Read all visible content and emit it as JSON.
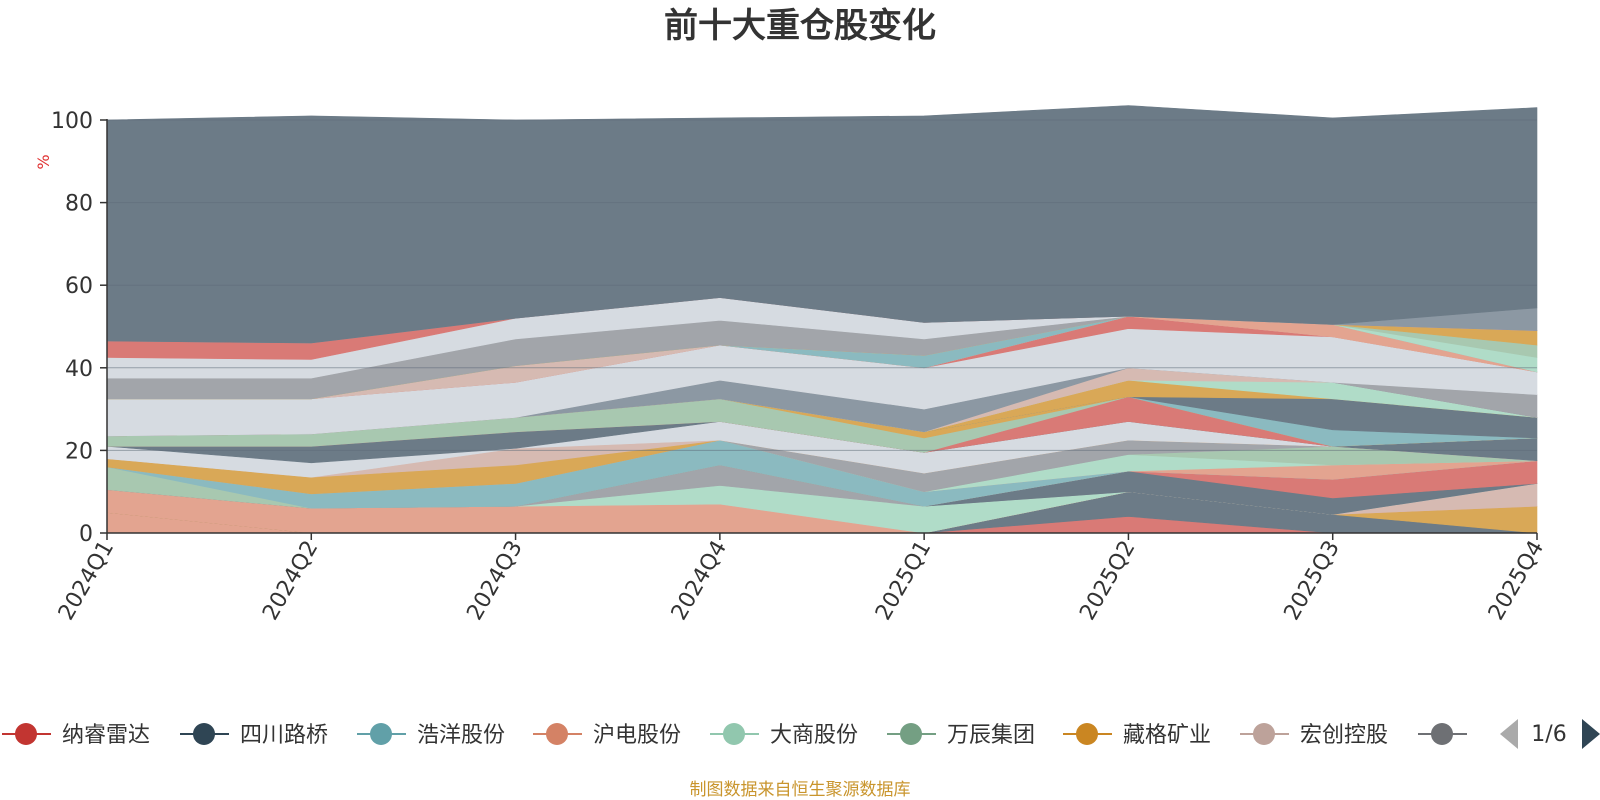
{
  "chart_data": {
    "type": "area",
    "stacked": true,
    "title": "前十大重仓股变化",
    "ylabel": "%",
    "ylim": [
      0,
      100
    ],
    "yticks": [
      0,
      20,
      40,
      60,
      80,
      100
    ],
    "grid": true,
    "legend_position": "bottom",
    "categories": [
      "2024Q1",
      "2024Q2",
      "2024Q3",
      "2024Q4",
      "2025Q1",
      "2025Q2",
      "2025Q3",
      "2025Q4"
    ],
    "series": [
      {
        "name": "",
        "color": "#e3a490",
        "values": [
          5.0,
          0.0,
          0.0,
          0.0,
          0.0,
          0.0,
          0.0,
          0.0
        ]
      },
      {
        "name": "纳睿雷达",
        "color": "#d97a76",
        "values": [
          0.0,
          0.0,
          0.0,
          0.0,
          0.0,
          4.0,
          0.0,
          0.0
        ]
      },
      {
        "name": "",
        "color": "#6c7b87",
        "values": [
          0.0,
          0.0,
          0.0,
          0.0,
          0.0,
          6.0,
          4.5,
          0.0
        ]
      },
      {
        "name": "藏格矿业",
        "color": "#d9a857",
        "values": [
          0.0,
          0.0,
          0.0,
          0.0,
          0.0,
          0.0,
          0.0,
          6.5
        ]
      },
      {
        "name": "沪电股份",
        "color": "#e3a490",
        "values": [
          5.5,
          6.0,
          6.5,
          7.0,
          0.0,
          0.0,
          0.0,
          0.0
        ]
      },
      {
        "name": "宏创控股",
        "color": "#d6bab2",
        "values": [
          0.0,
          0.0,
          0.0,
          0.0,
          0.0,
          0.0,
          0.0,
          5.5
        ]
      },
      {
        "name": "大商股份",
        "color": "#b0dcc8",
        "values": [
          0.0,
          0.0,
          0.0,
          4.5,
          6.5,
          0.0,
          0.0,
          0.0
        ]
      },
      {
        "name": "",
        "color": "#a2a5aa",
        "values": [
          0.0,
          0.0,
          0.0,
          5.0,
          0.0,
          0.0,
          0.0,
          0.0
        ]
      },
      {
        "name": "",
        "color": "#6c7b87",
        "values": [
          0.0,
          0.0,
          0.0,
          0.0,
          0.0,
          5.0,
          4.0,
          0.0
        ]
      },
      {
        "name": "",
        "color": "#d97a76",
        "values": [
          0.0,
          0.0,
          0.0,
          0.0,
          0.0,
          0.0,
          4.5,
          5.5
        ]
      },
      {
        "name": "",
        "color": "#a8c8b0",
        "values": [
          5.5,
          0.0,
          0.0,
          0.0,
          0.0,
          0.0,
          0.0,
          0.0
        ]
      },
      {
        "name": "",
        "color": "#8bbac0",
        "values": [
          0.0,
          3.5,
          5.5,
          6.0,
          3.5,
          0.0,
          0.0,
          0.0
        ]
      },
      {
        "name": "",
        "color": "#e3a490",
        "values": [
          0.0,
          0.0,
          0.0,
          0.0,
          0.0,
          0.0,
          3.5,
          0.0
        ]
      },
      {
        "name": "",
        "color": "#b0dcc8",
        "values": [
          0.0,
          0.0,
          0.0,
          0.0,
          0.0,
          4.0,
          0.0,
          0.0
        ]
      },
      {
        "name": "",
        "color": "#a8c8b0",
        "values": [
          0.0,
          0.0,
          0.0,
          0.0,
          0.0,
          0.0,
          4.5,
          0.0
        ]
      },
      {
        "name": "",
        "color": "#a2a5aa",
        "values": [
          0.0,
          0.0,
          0.0,
          0.0,
          4.5,
          3.5,
          0.0,
          0.0
        ]
      },
      {
        "name": "",
        "color": "#d9a857",
        "values": [
          2.0,
          4.0,
          4.5,
          0.0,
          0.0,
          0.0,
          0.0,
          0.0
        ]
      },
      {
        "name": "",
        "color": "#d6bab2",
        "values": [
          0.0,
          0.0,
          4.0,
          0.0,
          0.0,
          0.0,
          0.0,
          0.0
        ]
      },
      {
        "name": "",
        "color": "#d6dbe1",
        "values": [
          3.0,
          3.5,
          0.0,
          4.5,
          5.0,
          4.5,
          0.0,
          0.0
        ]
      },
      {
        "name": "",
        "color": "#6c7b87",
        "values": [
          0.0,
          4.0,
          4.0,
          0.0,
          0.0,
          0.0,
          0.0,
          5.5
        ]
      },
      {
        "name": "",
        "color": "#d97a76",
        "values": [
          0.0,
          0.0,
          0.0,
          0.0,
          0.0,
          6.0,
          0.0,
          0.0
        ]
      },
      {
        "name": "",
        "color": "#a8c8b0",
        "values": [
          2.5,
          3.0,
          3.5,
          5.5,
          3.5,
          0.0,
          0.0,
          0.0
        ]
      },
      {
        "name": "",
        "color": "#d9a857",
        "values": [
          0.0,
          0.0,
          0.0,
          0.0,
          1.5,
          0.0,
          0.0,
          0.0
        ]
      },
      {
        "name": "",
        "color": "#8bbac0",
        "values": [
          0.0,
          0.0,
          0.0,
          0.0,
          0.0,
          0.0,
          4.0,
          0.0
        ]
      },
      {
        "name": "",
        "color": "#6c7b87",
        "values": [
          0.0,
          0.0,
          0.0,
          0.0,
          0.0,
          0.0,
          7.5,
          5.0
        ]
      },
      {
        "name": "",
        "color": "#d9a857",
        "values": [
          0.0,
          0.0,
          0.0,
          0.0,
          0.0,
          4.0,
          0.0,
          0.0
        ]
      },
      {
        "name": "",
        "color": "#b0dcc8",
        "values": [
          0.0,
          0.0,
          0.0,
          0.0,
          0.0,
          0.0,
          4.0,
          0.0
        ]
      },
      {
        "name": "",
        "color": "#d6bab2",
        "values": [
          0.0,
          0.0,
          0.0,
          0.0,
          0.0,
          3.0,
          0.0,
          0.0
        ]
      },
      {
        "name": "",
        "color": "#8c98a3",
        "values": [
          0.0,
          0.0,
          0.0,
          4.5,
          5.5,
          0.0,
          0.0,
          0.0
        ]
      },
      {
        "name": "",
        "color": "#a2a5aa",
        "values": [
          0.0,
          0.0,
          0.0,
          0.0,
          0.0,
          0.0,
          0.0,
          5.5
        ]
      },
      {
        "name": "",
        "color": "#d6dbe1",
        "values": [
          9.0,
          8.5,
          8.5,
          8.5,
          10.0,
          9.5,
          11.0,
          5.5
        ]
      },
      {
        "name": "",
        "color": "#d97a76",
        "values": [
          0.0,
          0.0,
          0.0,
          0.0,
          0.0,
          3.0,
          0.0,
          0.0
        ]
      },
      {
        "name": "",
        "color": "#d6bab2",
        "values": [
          0.0,
          0.0,
          4.0,
          0.0,
          0.0,
          0.0,
          0.0,
          0.0
        ]
      },
      {
        "name": "",
        "color": "#e3a490",
        "values": [
          0.0,
          0.0,
          0.0,
          0.0,
          0.0,
          0.0,
          3.0,
          0.0
        ]
      },
      {
        "name": "",
        "color": "#8bbac0",
        "values": [
          0.0,
          0.0,
          0.0,
          0.0,
          3.0,
          0.0,
          0.0,
          0.0
        ]
      },
      {
        "name": "",
        "color": "#b0dcc8",
        "values": [
          0.0,
          0.0,
          0.0,
          0.0,
          0.0,
          0.0,
          0.0,
          3.5
        ]
      },
      {
        "name": "",
        "color": "#a8c8b0",
        "values": [
          0.0,
          0.0,
          0.0,
          0.0,
          0.0,
          0.0,
          0.0,
          3.0
        ]
      },
      {
        "name": "",
        "color": "#d9a857",
        "values": [
          0.0,
          0.0,
          0.0,
          0.0,
          0.0,
          0.0,
          0.0,
          3.5
        ]
      },
      {
        "name": "",
        "color": "#a2a5aa",
        "values": [
          5.0,
          5.0,
          6.5,
          6.0,
          4.0,
          0.0,
          0.0,
          0.0
        ]
      },
      {
        "name": "",
        "color": "#d6dbe1",
        "values": [
          5.0,
          4.5,
          5.0,
          5.5,
          4.0,
          0.0,
          0.0,
          0.0
        ]
      },
      {
        "name": "",
        "color": "#d97a76",
        "values": [
          4.0,
          4.0,
          0.0,
          0.0,
          0.0,
          0.0,
          0.0,
          0.0
        ]
      },
      {
        "name": "",
        "color": "#8c98a3",
        "values": [
          0.0,
          0.0,
          0.0,
          0.0,
          0.0,
          0.0,
          0.0,
          5.5
        ]
      },
      {
        "name": "",
        "color": "#6c7b87",
        "values": [
          53.5,
          55.0,
          48.0,
          43.5,
          50.0,
          51.0,
          50.0,
          48.5
        ]
      }
    ],
    "legend": [
      {
        "name": "纳睿雷达",
        "color": "#c23531"
      },
      {
        "name": "四川路桥",
        "color": "#2f4554"
      },
      {
        "name": "浩洋股份",
        "color": "#61a0a8"
      },
      {
        "name": "沪电股份",
        "color": "#d48265"
      },
      {
        "name": "大商股份",
        "color": "#91c7ae"
      },
      {
        "name": "万辰集团",
        "color": "#749f83"
      },
      {
        "name": "藏格矿业",
        "color": "#ca8622"
      },
      {
        "name": "宏创控股",
        "color": "#bda29a"
      },
      {
        "name": "",
        "color": "#6e7074"
      }
    ],
    "legend_page": "1/6",
    "source": "制图数据来自恒生聚源数据库"
  }
}
